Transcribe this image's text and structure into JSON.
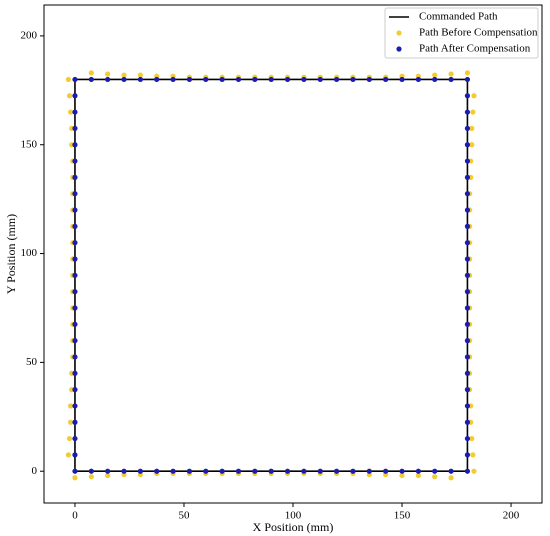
{
  "chart_data": {
    "type": "scatter",
    "xlabel": "X Position (mm)",
    "ylabel": "Y Position (mm)",
    "xlim": [
      -14.2,
      214.2
    ],
    "ylim": [
      -14.6,
      214.2
    ],
    "xticks": [
      0,
      50,
      100,
      150,
      200
    ],
    "yticks": [
      0,
      50,
      100,
      150,
      200
    ],
    "grid": false,
    "legend": "upper right",
    "series": [
      {
        "name": "Commanded Path",
        "type": "line",
        "color": "#000000",
        "x": [
          0,
          180,
          180,
          0,
          0
        ],
        "y": [
          0,
          0,
          180,
          180,
          0
        ]
      },
      {
        "name": "Path Before Compensation",
        "type": "scatter",
        "color": "#f2cc30",
        "x": [
          0,
          7.5,
          15,
          22.5,
          30,
          37.5,
          45,
          52.5,
          60,
          67.5,
          75,
          82.5,
          90,
          97.5,
          105,
          112.5,
          120,
          127.5,
          135,
          142.5,
          150,
          157.5,
          165,
          172.5,
          183,
          182.5,
          182,
          181.5,
          181.5,
          181,
          181,
          181,
          181,
          181,
          181,
          181,
          181,
          181,
          181,
          181,
          181,
          181,
          181.5,
          181.5,
          182,
          182,
          182.5,
          183,
          180,
          172.5,
          165,
          157.5,
          150,
          142.5,
          135,
          127.5,
          120,
          112.5,
          105,
          97.5,
          90,
          82.5,
          75,
          67.5,
          60,
          52.5,
          45,
          37.5,
          30,
          22.5,
          15,
          7.5,
          -3,
          -2.5,
          -2,
          -1.5,
          -1.5,
          -1,
          -1,
          -1,
          -1,
          -1,
          -1,
          -1,
          -1,
          -1,
          -1,
          -1,
          -1,
          -1,
          -1.5,
          -1.5,
          -2,
          -2,
          -2.5,
          -3
        ],
        "y": [
          -3,
          -2.5,
          -2,
          -1.5,
          -1.5,
          -1,
          -1,
          -1,
          -1,
          -1,
          -1,
          -1,
          -1,
          -1,
          -1,
          -1,
          -1,
          -1,
          -1.5,
          -1.5,
          -2,
          -2,
          -2.5,
          -3,
          0,
          7.5,
          15,
          22.5,
          30,
          37.5,
          45,
          52.5,
          60,
          67.5,
          75,
          82.5,
          90,
          97.5,
          105,
          112.5,
          120,
          127.5,
          135,
          142.5,
          150,
          157.5,
          165,
          172.5,
          183,
          182.5,
          182,
          181.5,
          181.5,
          181,
          181,
          181,
          181,
          181,
          181,
          181,
          181,
          181,
          181,
          181,
          181,
          181,
          181.5,
          181.5,
          182,
          182,
          182.5,
          183,
          180,
          172.5,
          165,
          157.5,
          150,
          142.5,
          135,
          127.5,
          120,
          112.5,
          105,
          97.5,
          90,
          82.5,
          75,
          67.5,
          60,
          52.5,
          45,
          37.5,
          30,
          22.5,
          15,
          7.5
        ]
      },
      {
        "name": "Path After Compensation",
        "type": "scatter",
        "color": "#1c1cb0",
        "x": [
          0,
          7.5,
          15,
          22.5,
          30,
          37.5,
          45,
          52.5,
          60,
          67.5,
          75,
          82.5,
          90,
          97.5,
          105,
          112.5,
          120,
          127.5,
          135,
          142.5,
          150,
          157.5,
          165,
          172.5,
          180,
          180,
          180,
          180,
          180,
          180,
          180,
          180,
          180,
          180,
          180,
          180,
          180,
          180,
          180,
          180,
          180,
          180,
          180,
          180,
          180,
          180,
          180,
          180,
          180,
          172.5,
          165,
          157.5,
          150,
          142.5,
          135,
          127.5,
          120,
          112.5,
          105,
          97.5,
          90,
          82.5,
          75,
          67.5,
          60,
          52.5,
          45,
          37.5,
          30,
          22.5,
          15,
          7.5,
          0,
          0,
          0,
          0,
          0,
          0,
          0,
          0,
          0,
          0,
          0,
          0,
          0,
          0,
          0,
          0,
          0,
          0,
          0,
          0,
          0,
          0,
          0,
          0
        ],
        "y": [
          0,
          0,
          0,
          0,
          0,
          0,
          0,
          0,
          0,
          0,
          0,
          0,
          0,
          0,
          0,
          0,
          0,
          0,
          0,
          0,
          0,
          0,
          0,
          0,
          0,
          7.5,
          15,
          22.5,
          30,
          37.5,
          45,
          52.5,
          60,
          67.5,
          75,
          82.5,
          90,
          97.5,
          105,
          112.5,
          120,
          127.5,
          135,
          142.5,
          150,
          157.5,
          165,
          172.5,
          180,
          180,
          180,
          180,
          180,
          180,
          180,
          180,
          180,
          180,
          180,
          180,
          180,
          180,
          180,
          180,
          180,
          180,
          180,
          180,
          180,
          180,
          180,
          180,
          180,
          172.5,
          165,
          157.5,
          150,
          142.5,
          135,
          127.5,
          120,
          112.5,
          105,
          97.5,
          90,
          82.5,
          75,
          67.5,
          60,
          52.5,
          45,
          37.5,
          30,
          22.5,
          15,
          7.5
        ]
      }
    ]
  }
}
